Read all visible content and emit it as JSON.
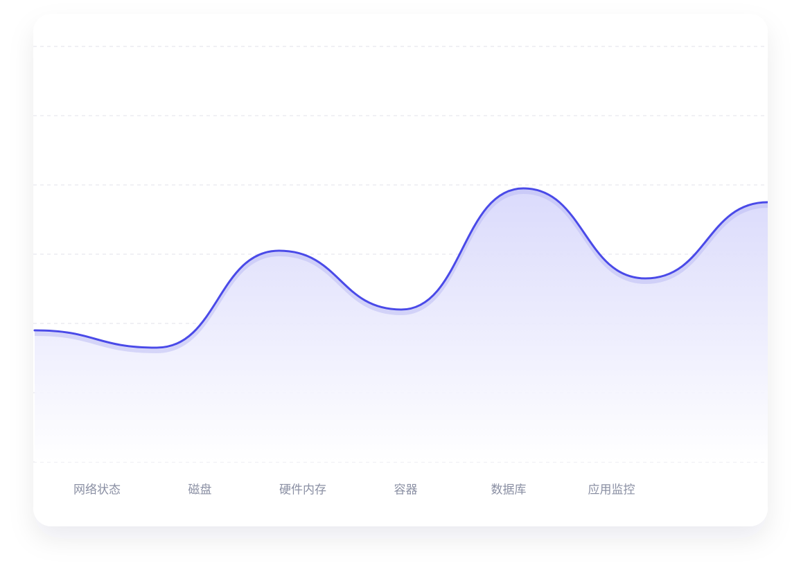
{
  "chart_data": {
    "type": "line",
    "categories": [
      "网络状态",
      "磁盘",
      "硬件内存",
      "容器",
      "数据库",
      "应用监控",
      null
    ],
    "values": [
      190,
      165,
      305,
      220,
      395,
      265,
      375
    ],
    "color": "#4a4ae8",
    "ylim": [
      0,
      600
    ],
    "yticks": [
      0,
      100,
      200,
      300,
      400,
      500,
      600
    ],
    "grid": true
  }
}
